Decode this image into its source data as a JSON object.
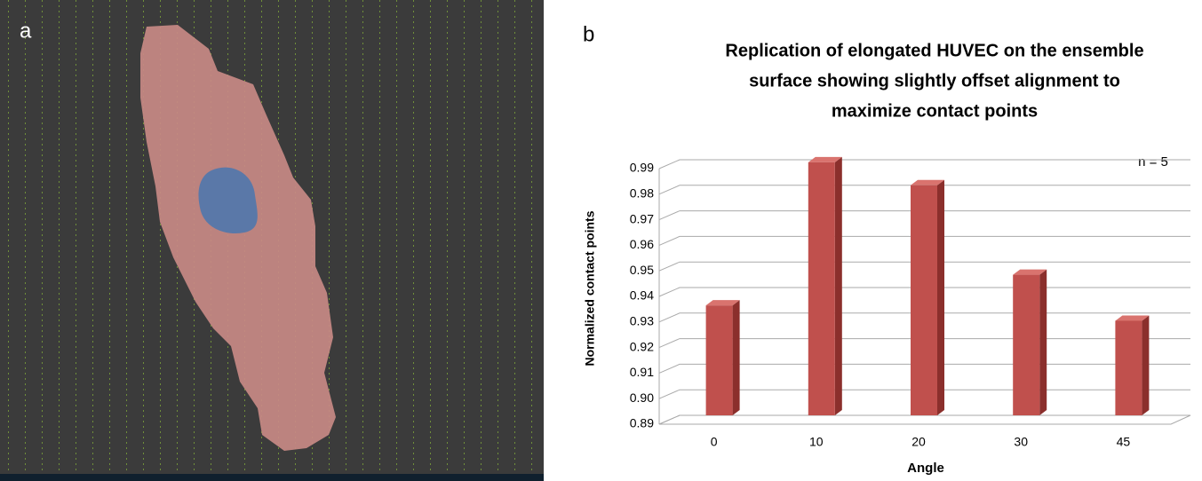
{
  "panel_a_label": "a",
  "panel_b_label": "b",
  "chart_data": {
    "type": "bar",
    "title": [
      "Replication of elongated HUVEC on the ensemble",
      "surface showing slightly offset alignment to",
      "maximize contact points"
    ],
    "annotation": "n = 5",
    "x_label": "Angle",
    "y_label": "Normalized contact points",
    "categories": [
      "0",
      "10",
      "20",
      "30",
      "45"
    ],
    "values": [
      0.933,
      0.989,
      0.98,
      0.945,
      0.927
    ],
    "color": "#c0504d",
    "ylim": [
      0.89,
      0.99
    ],
    "yticks": [
      0.89,
      {
        "value": 0.9,
        "label": "0.90"
      },
      0.91,
      0.92,
      0.93,
      0.94,
      0.95,
      0.96,
      0.97,
      0.98,
      0.99
    ],
    "grid": true
  }
}
